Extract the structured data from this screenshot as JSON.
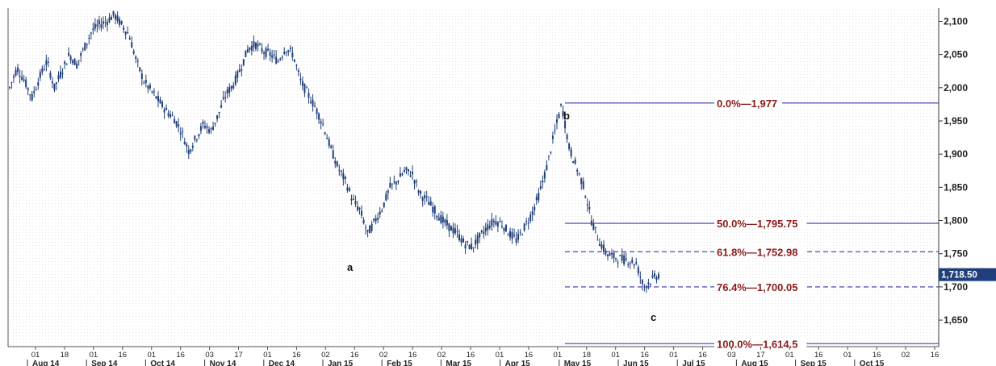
{
  "chart_data": {
    "type": "candlestick",
    "x_month_labels": [
      "Aug 14",
      "Sep 14",
      "Oct 14",
      "Nov 14",
      "Dec 14",
      "Jan 15",
      "Feb 15",
      "Mar 15",
      "Apr 15",
      "May 15",
      "Jun 15",
      "Jul 15",
      "Aug 15",
      "Sep 15",
      "Oct 15"
    ],
    "x_day_ticks": [
      "01",
      "18",
      "01",
      "16",
      "01",
      "16",
      "03",
      "17",
      "01",
      "16",
      "02",
      "16",
      "02",
      "16",
      "02",
      "16",
      "01",
      "16",
      "01",
      "18",
      "01",
      "16",
      "01",
      "16",
      "03",
      "17",
      "01",
      "16",
      "01",
      "16",
      "02",
      "16"
    ],
    "y_ticks": [
      2100,
      2050,
      2000,
      1950,
      1900,
      1850,
      1800,
      1750,
      1700,
      1650
    ],
    "ylim": [
      1610,
      2120
    ],
    "last_price_label": "1,718.50",
    "last_price": 1718.5,
    "fibonacci_levels": [
      {
        "pct": "0.0%",
        "value": "1,977",
        "price": 1977,
        "style": "solid"
      },
      {
        "pct": "50.0%",
        "value": "1,795.75",
        "price": 1795.75,
        "style": "solid"
      },
      {
        "pct": "61.8%",
        "value": "1,752.98",
        "price": 1752.98,
        "style": "dashed"
      },
      {
        "pct": "76.4%",
        "value": "1,700.05",
        "price": 1700.05,
        "style": "dashed"
      },
      {
        "pct": "100.0%",
        "value": "1,614.5",
        "price": 1614.5,
        "style": "solid"
      }
    ],
    "wave_labels": [
      {
        "text": "a",
        "price": 1750
      },
      {
        "text": "b",
        "price": 1977
      },
      {
        "text": "c",
        "price": 1697
      }
    ],
    "price_series_approx": [
      2000,
      2030,
      2010,
      1985,
      2015,
      2040,
      2000,
      2025,
      2050,
      2035,
      2060,
      2085,
      2095,
      2100,
      2110,
      2095,
      2080,
      2040,
      2010,
      1995,
      1980,
      1965,
      1955,
      1935,
      1905,
      1925,
      1945,
      1935,
      1960,
      1990,
      2005,
      2030,
      2060,
      2065,
      2055,
      2050,
      2040,
      2060,
      2050,
      2010,
      1990,
      1970,
      1945,
      1910,
      1880,
      1860,
      1830,
      1815,
      1780,
      1800,
      1820,
      1850,
      1860,
      1875,
      1870,
      1840,
      1830,
      1815,
      1800,
      1790,
      1780,
      1765,
      1760,
      1775,
      1790,
      1800,
      1795,
      1780,
      1770,
      1790,
      1810,
      1840,
      1880,
      1930,
      1975,
      1910,
      1880,
      1850,
      1800,
      1770,
      1750,
      1745,
      1742,
      1740,
      1735,
      1700,
      1710,
      1718
    ],
    "colors": {
      "candles": "#1f3f7a",
      "fib_line": "#4b46b3",
      "fib_text": "#8b1a1a",
      "price_tag_bg": "#1f3f7a",
      "axis": "#333333"
    }
  }
}
